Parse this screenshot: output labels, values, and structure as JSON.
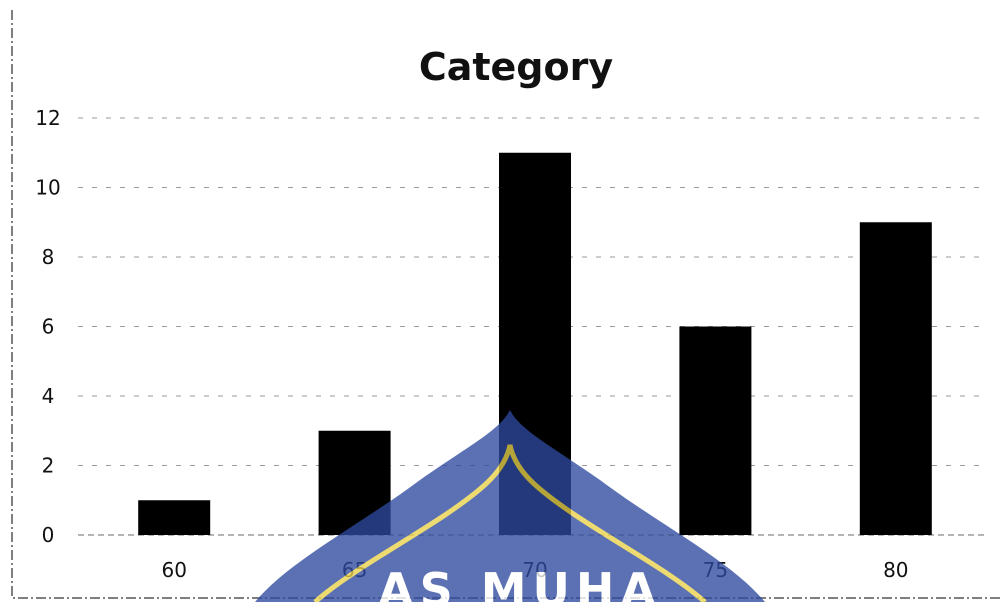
{
  "chart_data": {
    "type": "bar",
    "title": "Category",
    "xlabel": "",
    "ylabel": "",
    "categories": [
      "60",
      "65",
      "70",
      "75",
      "80"
    ],
    "values": [
      1,
      3,
      11,
      6,
      9
    ],
    "ylim": [
      0,
      12
    ],
    "yticks": [
      "0",
      "2",
      "4",
      "6",
      "8",
      "10",
      "12"
    ],
    "grid": true,
    "legend": "none",
    "bar_color": "#000000",
    "watermark_colors": [
      "#2f4a9e",
      "#e8d24a"
    ]
  }
}
